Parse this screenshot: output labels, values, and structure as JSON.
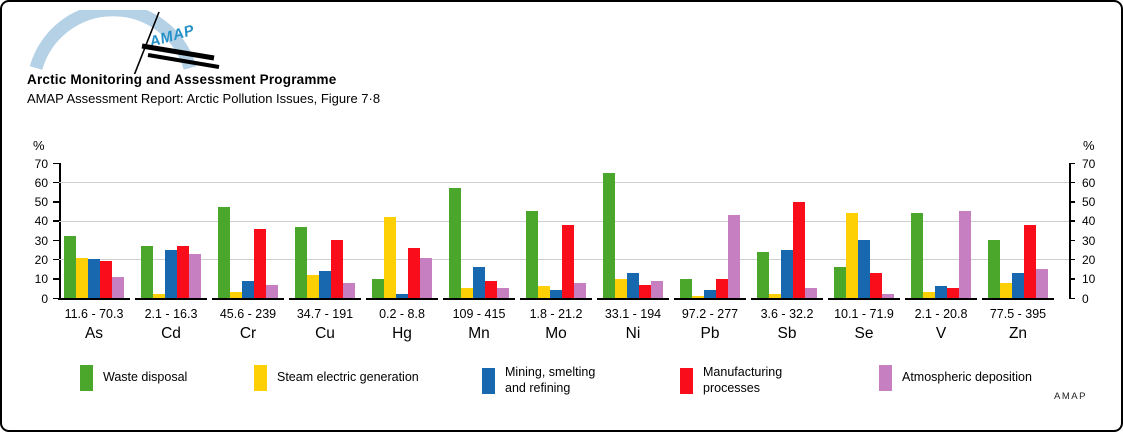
{
  "header": {
    "title": "Arctic Monitoring and Assessment Programme",
    "subtitle": "AMAP Assessment Report: Arctic Pollution Issues, Figure 7·8",
    "logo_text": "AMAP",
    "logo_arc_color": "#b5d1e6",
    "logo_text_color": "#2691c8"
  },
  "chart_data": {
    "type": "bar",
    "title": "",
    "ylabel_left": "%",
    "ylabel_right": "%",
    "ylim": [
      0,
      70
    ],
    "yticks": [
      0,
      10,
      20,
      30,
      40,
      50,
      60,
      70
    ],
    "gridlines": [
      20,
      40,
      60
    ],
    "grid_color": "#cfcfcf",
    "legend_position": "bottom",
    "categories": [
      "As",
      "Cd",
      "Cr",
      "Cu",
      "Hg",
      "Mn",
      "Mo",
      "Ni",
      "Pb",
      "Sb",
      "Se",
      "V",
      "Zn"
    ],
    "ranges": [
      "11.6 - 70.3",
      "2.1 - 16.3",
      "45.6 - 239",
      "34.7 - 191",
      "0.2 - 8.8",
      "109 - 415",
      "1.8 - 21.2",
      "33.1 - 194",
      "97.2 - 277",
      "3.6 - 32.2",
      "10.1 - 71.9",
      "2.1 - 20.8",
      "77.5 - 395"
    ],
    "series": [
      {
        "name": "Waste disposal",
        "color": "#4ba62c",
        "values": [
          32,
          27,
          47,
          37,
          10,
          57,
          45,
          65,
          10,
          24,
          16,
          44,
          30
        ]
      },
      {
        "name": "Steam electric generation",
        "color": "#fdd005",
        "values": [
          21,
          2,
          3,
          12,
          42,
          5,
          6,
          10,
          1,
          2,
          44,
          3,
          8
        ]
      },
      {
        "name": "Mining, smelting\nand refining",
        "color": "#1768ae",
        "values": [
          20,
          25,
          9,
          14,
          2,
          16,
          4,
          13,
          4,
          25,
          30,
          6,
          13
        ]
      },
      {
        "name": "Manufacturing\nprocesses",
        "color": "#f90d1b",
        "values": [
          19,
          27,
          36,
          30,
          26,
          9,
          38,
          7,
          10,
          50,
          13,
          5,
          38
        ]
      },
      {
        "name": "Atmospheric deposition",
        "color": "#c67fc0",
        "values": [
          11,
          23,
          7,
          8,
          21,
          5,
          8,
          9,
          43,
          5,
          2,
          45,
          15
        ]
      }
    ]
  },
  "footer": {
    "brand": "AMAP"
  }
}
